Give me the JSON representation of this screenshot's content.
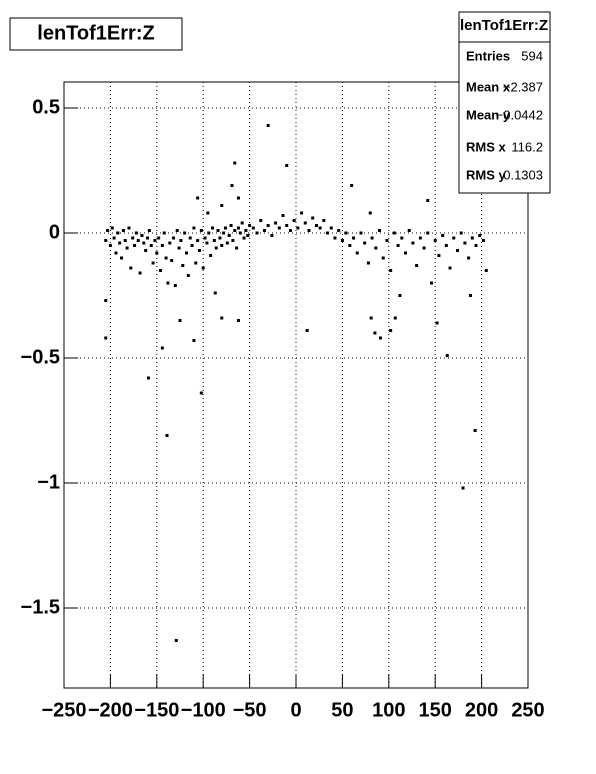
{
  "chart_data": {
    "type": "scatter",
    "title": "lenTof1Err:Z",
    "stats": {
      "title": "lenTof1Err:Z",
      "rows": [
        {
          "label": "Entries",
          "value": "594"
        },
        {
          "label": "Mean x",
          "value": "−2.387"
        },
        {
          "label": "Mean y",
          "value": "−0.0442"
        },
        {
          "label": "RMS x",
          "value": "116.2"
        },
        {
          "label": "RMS y",
          "value": "0.1303"
        }
      ]
    },
    "xlim": [
      -250,
      250
    ],
    "ylim": [
      -1.82,
      0.604
    ],
    "xticks": [
      {
        "value": -250,
        "label": "−250"
      },
      {
        "value": -200,
        "label": "−200"
      },
      {
        "value": -150,
        "label": "−150"
      },
      {
        "value": -100,
        "label": "−100"
      },
      {
        "value": -50,
        "label": "−50"
      },
      0,
      50,
      100,
      150,
      200,
      250
    ],
    "yticks": [
      {
        "value": -1.5,
        "label": "−1.5"
      },
      {
        "value": -1,
        "label": "−1"
      },
      {
        "value": -0.5,
        "label": "−0.5"
      },
      0,
      0.5
    ],
    "grid": true,
    "color": "#000000",
    "x": [
      -205,
      -203,
      -200,
      -198,
      -196,
      -194,
      -192,
      -190,
      -188,
      -186,
      -184,
      -182,
      -180,
      -178,
      -176,
      -174,
      -172,
      -170,
      -168,
      -166,
      -164,
      -162,
      -160,
      -158,
      -156,
      -154,
      -152,
      -150,
      -148,
      -146,
      -144,
      -142,
      -140,
      -138,
      -136,
      -134,
      -132,
      -130,
      -128,
      -126,
      -124,
      -122,
      -120,
      -118,
      -116,
      -114,
      -112,
      -110,
      -108,
      -106,
      -104,
      -102,
      -100,
      -98,
      -96,
      -94,
      -92,
      -90,
      -88,
      -86,
      -84,
      -82,
      -80,
      -78,
      -76,
      -74,
      -72,
      -70,
      -68,
      -66,
      -64,
      -62,
      -60,
      -58,
      -56,
      -54,
      -52,
      -50,
      -46,
      -42,
      -38,
      -34,
      -30,
      -26,
      -22,
      -18,
      -14,
      -10,
      -6,
      -2,
      2,
      6,
      10,
      14,
      18,
      22,
      26,
      30,
      34,
      38,
      42,
      46,
      50,
      54,
      58,
      62,
      66,
      70,
      74,
      78,
      82,
      86,
      90,
      94,
      98,
      102,
      106,
      110,
      114,
      118,
      122,
      126,
      130,
      134,
      138,
      142,
      146,
      150,
      154,
      158,
      162,
      166,
      170,
      174,
      178,
      182,
      186,
      190,
      194,
      198,
      202,
      205,
      -205,
      -205,
      -159,
      -139,
      -129,
      -102,
      -144,
      -125,
      -110,
      -87,
      -80,
      -62,
      -30,
      -10,
      12,
      -66,
      -69,
      60,
      80,
      81,
      85,
      91,
      102,
      107,
      112,
      142,
      152,
      163,
      188,
      193,
      180,
      -106,
      -95,
      -80,
      -62
    ],
    "y": [
      -0.03,
      0.01,
      -0.05,
      0.02,
      -0.02,
      -0.08,
      0,
      -0.04,
      -0.1,
      0.01,
      -0.03,
      -0.06,
      0.02,
      -0.14,
      -0.02,
      -0.05,
      0,
      -0.03,
      -0.16,
      -0.01,
      -0.04,
      -0.07,
      -0.02,
      0.01,
      -0.05,
      -0.12,
      -0.03,
      -0.08,
      -0.02,
      -0.15,
      -0.05,
      0,
      -0.1,
      -0.2,
      -0.04,
      -0.11,
      -0.02,
      -0.21,
      0.01,
      -0.06,
      -0.03,
      -0.13,
      0,
      -0.08,
      -0.17,
      -0.02,
      -0.05,
      0.02,
      -0.12,
      -0.03,
      -0.07,
      0.01,
      -0.14,
      -0.02,
      -0.04,
      0,
      -0.09,
      0.02,
      -0.03,
      -0.06,
      0.01,
      -0.02,
      -0.05,
      0,
      0.02,
      -0.04,
      -0.01,
      0.03,
      -0.03,
      0.01,
      -0.06,
      0.02,
      0,
      0.04,
      -0.02,
      0.01,
      -0.01,
      0.03,
      0.02,
      0,
      0.05,
      0.01,
      0.03,
      -0.01,
      0.04,
      0.02,
      0.07,
      0.03,
      0.01,
      0.05,
      0.02,
      0.08,
      0.04,
      0.01,
      0.06,
      0.03,
      0.02,
      0.05,
      0,
      0.02,
      -0.02,
      0.01,
      -0.03,
      0,
      -0.05,
      -0.02,
      -0.08,
      0,
      -0.04,
      -0.12,
      -0.02,
      -0.06,
      0.01,
      -0.1,
      -0.03,
      -0.15,
      0,
      -0.05,
      -0.02,
      -0.08,
      0.01,
      -0.04,
      -0.13,
      -0.02,
      -0.06,
      0,
      -0.2,
      -0.03,
      -0.09,
      -0.01,
      -0.05,
      -0.14,
      -0.02,
      -0.07,
      0,
      -0.04,
      -0.1,
      -0.02,
      -0.05,
      -0.01,
      -0.03,
      -0.15,
      -0.27,
      -0.42,
      -0.58,
      -0.81,
      -1.63,
      -0.64,
      -0.46,
      -0.35,
      -0.43,
      -0.24,
      -0.34,
      -0.35,
      0.43,
      0.27,
      -0.39,
      0.28,
      0.19,
      0.19,
      0.08,
      -0.34,
      -0.4,
      -0.42,
      -0.39,
      -0.34,
      -0.25,
      0.13,
      -0.36,
      -0.49,
      -0.25,
      -0.79,
      -1.02,
      0.14,
      0.08,
      0.11,
      0.14
    ]
  }
}
